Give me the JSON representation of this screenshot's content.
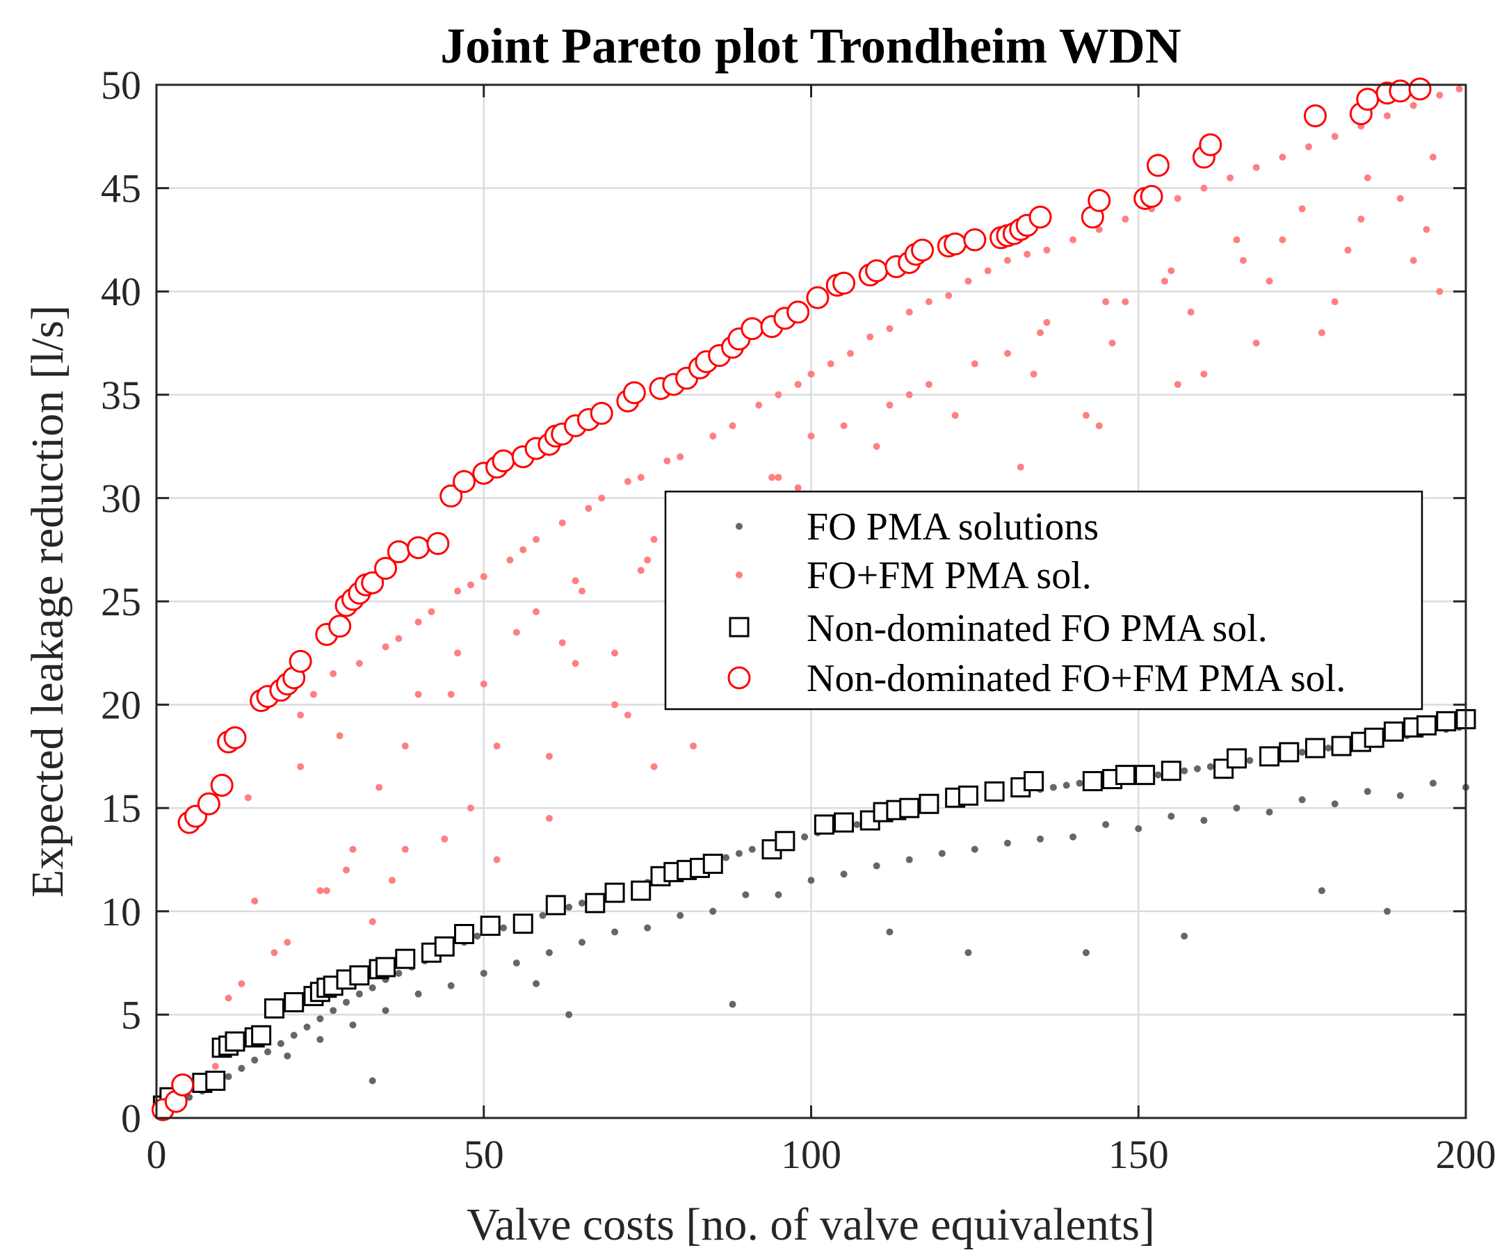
{
  "chart_data": {
    "type": "scatter",
    "title": "Joint Pareto plot Trondheim WDN",
    "xlabel": "Valve costs [no. of valve equivalents]",
    "ylabel": "Expected leakage reduction [l/s]",
    "xlim": [
      0,
      200
    ],
    "ylim": [
      0,
      50
    ],
    "xticks": [
      0,
      50,
      100,
      150,
      200
    ],
    "yticks": [
      0,
      5,
      10,
      15,
      20,
      25,
      30,
      35,
      40,
      45,
      50
    ],
    "xtick_labels": [
      "0",
      "50",
      "100",
      "150",
      "200"
    ],
    "ytick_labels": [
      "0",
      "5",
      "10",
      "15",
      "20",
      "25",
      "30",
      "35",
      "40",
      "45",
      "50"
    ],
    "grid": true,
    "legend_position": "center-right",
    "legend": [
      {
        "label": "FO PMA solutions",
        "marker": "dot",
        "color": "#666666"
      },
      {
        "label": "FO+FM PMA sol.",
        "marker": "dot",
        "color": "#ff7f7f"
      },
      {
        "label": "Non-dominated FO PMA sol.",
        "marker": "square",
        "color": "#000000"
      },
      {
        "label": "Non-dominated FO+FM PMA sol.",
        "marker": "circle",
        "color": "#ff0000"
      }
    ],
    "series": [
      {
        "name": "Non-dominated FO+FM PMA sol.",
        "marker": "circle",
        "color": "#ff0000",
        "x": [
          1,
          3,
          4,
          5,
          6,
          8,
          10,
          11,
          12,
          16,
          17,
          19,
          20,
          21,
          22,
          26,
          28,
          29,
          30,
          31,
          32,
          33,
          35,
          37,
          40,
          43,
          45,
          47,
          50,
          52,
          53,
          56,
          58,
          60,
          61,
          62,
          64,
          66,
          68,
          72,
          73,
          77,
          79,
          81,
          83,
          84,
          86,
          88,
          89,
          91,
          94,
          96,
          98,
          101,
          104,
          105,
          109,
          110,
          113,
          115,
          116,
          117,
          121,
          122,
          125,
          129,
          130,
          131,
          132,
          133,
          135,
          143,
          144,
          151,
          152,
          153,
          160,
          161,
          177,
          184,
          185,
          188,
          190,
          193
        ],
        "y": [
          0.4,
          0.8,
          1.6,
          14.3,
          14.6,
          15.2,
          16.1,
          18.2,
          18.4,
          20.2,
          20.4,
          20.7,
          21.0,
          21.3,
          22.1,
          23.4,
          23.8,
          24.8,
          25.1,
          25.4,
          25.8,
          25.9,
          26.6,
          27.4,
          27.6,
          27.8,
          30.1,
          30.8,
          31.2,
          31.5,
          31.8,
          32.0,
          32.4,
          32.6,
          33.0,
          33.1,
          33.5,
          33.8,
          34.1,
          34.7,
          35.1,
          35.3,
          35.5,
          35.8,
          36.3,
          36.6,
          36.9,
          37.3,
          37.7,
          38.2,
          38.3,
          38.7,
          39.0,
          39.7,
          40.3,
          40.4,
          40.8,
          41.0,
          41.2,
          41.4,
          41.8,
          42.0,
          42.2,
          42.3,
          42.5,
          42.6,
          42.7,
          42.8,
          43.0,
          43.2,
          43.6,
          43.6,
          44.4,
          44.5,
          44.6,
          46.1,
          46.5,
          47.1,
          48.5,
          48.6,
          49.3,
          49.6,
          49.7,
          49.8
        ]
      },
      {
        "name": "Non-dominated FO PMA sol.",
        "marker": "square",
        "color": "#000000",
        "x": [
          1,
          2,
          7,
          9,
          10,
          11,
          12,
          15,
          16,
          18,
          21,
          24,
          25,
          26,
          27,
          29,
          31,
          34,
          35,
          38,
          42,
          44,
          47,
          51,
          56,
          61,
          67,
          70,
          74,
          77,
          79,
          81,
          83,
          85,
          94,
          96,
          102,
          105,
          109,
          111,
          113,
          115,
          118,
          122,
          124,
          128,
          132,
          134,
          143,
          146,
          148,
          151,
          155,
          163,
          165,
          170,
          173,
          177,
          181,
          184,
          186,
          189,
          192,
          194,
          197,
          200
        ],
        "y": [
          0.6,
          1.0,
          1.7,
          1.8,
          3.4,
          3.5,
          3.7,
          3.9,
          4.0,
          5.3,
          5.6,
          5.9,
          6.1,
          6.3,
          6.4,
          6.7,
          6.9,
          7.2,
          7.3,
          7.7,
          8.0,
          8.3,
          8.9,
          9.3,
          9.4,
          10.3,
          10.4,
          10.9,
          11.0,
          11.7,
          11.9,
          12.0,
          12.1,
          12.3,
          13.0,
          13.4,
          14.2,
          14.3,
          14.4,
          14.8,
          14.9,
          15.0,
          15.2,
          15.5,
          15.6,
          15.8,
          16.0,
          16.3,
          16.3,
          16.4,
          16.6,
          16.6,
          16.8,
          16.9,
          17.4,
          17.5,
          17.7,
          17.9,
          18.0,
          18.2,
          18.4,
          18.7,
          18.9,
          19.0,
          19.2,
          19.3
        ]
      },
      {
        "name": "FO+FM PMA sol.",
        "marker": "dot",
        "color": "#ff7f7f",
        "x": [
          4,
          6,
          9,
          11,
          13,
          15,
          14,
          18,
          20,
          22,
          24,
          25,
          27,
          29,
          31,
          33,
          35,
          37,
          38,
          40,
          42,
          44,
          46,
          48,
          50,
          52,
          54,
          56,
          58,
          60,
          62,
          64,
          66,
          68,
          70,
          72,
          74,
          76,
          78,
          80,
          82,
          85,
          88,
          90,
          92,
          95,
          98,
          100,
          103,
          106,
          109,
          112,
          115,
          118,
          121,
          124,
          127,
          130,
          133,
          136,
          140,
          144,
          148,
          152,
          156,
          160,
          164,
          168,
          172,
          176,
          180,
          184,
          188,
          192,
          196,
          199,
          22,
          28,
          34,
          40,
          46,
          52,
          58,
          64,
          70,
          76,
          82,
          88,
          94,
          100,
          106,
          112,
          118,
          124,
          130,
          136,
          142,
          148,
          154,
          160,
          166,
          172,
          178,
          184,
          190,
          196,
          36,
          48,
          60,
          72,
          84,
          96,
          108,
          120,
          132,
          144,
          156,
          168,
          180,
          192,
          30,
          45,
          55,
          65,
          75,
          85,
          95,
          105,
          115,
          125,
          135,
          145,
          155,
          165,
          175,
          185,
          195,
          26,
          38,
          50,
          62,
          74,
          86,
          98,
          110,
          122,
          134,
          146,
          158,
          170,
          182,
          194
        ],
        "y": [
          1.5,
          2.0,
          2.5,
          5.8,
          6.5,
          10.5,
          15.5,
          8.0,
          8.5,
          19.5,
          20.5,
          11.0,
          21.5,
          12.0,
          22.0,
          9.5,
          22.8,
          23.2,
          13.0,
          24.0,
          24.5,
          13.5,
          25.5,
          25.8,
          26.2,
          12.5,
          27.0,
          27.5,
          28.0,
          14.5,
          28.8,
          22.0,
          29.5,
          30.0,
          22.5,
          30.8,
          31.0,
          17.0,
          31.8,
          32.0,
          18.0,
          33.0,
          33.5,
          24.0,
          34.5,
          35.0,
          35.5,
          36.0,
          36.5,
          37.0,
          37.8,
          38.2,
          39.0,
          39.5,
          39.8,
          40.5,
          41.0,
          41.5,
          41.8,
          42.0,
          42.5,
          43.0,
          43.5,
          44.0,
          44.5,
          45.0,
          45.5,
          46.0,
          46.5,
          47.0,
          47.5,
          48.0,
          48.5,
          49.0,
          49.5,
          49.8,
          17.0,
          18.5,
          16.0,
          20.5,
          22.5,
          18.0,
          24.5,
          26.0,
          20.0,
          28.0,
          29.0,
          24.5,
          31.0,
          33.0,
          28.0,
          34.5,
          35.5,
          30.0,
          37.0,
          38.5,
          34.0,
          39.5,
          40.5,
          36.0,
          41.5,
          42.5,
          38.0,
          43.5,
          44.5,
          40.0,
          11.5,
          15.0,
          17.5,
          19.5,
          21.5,
          25.5,
          27.5,
          29.5,
          31.5,
          33.5,
          35.5,
          37.5,
          39.5,
          41.5,
          13.0,
          20.5,
          23.5,
          25.5,
          27.0,
          29.5,
          31.0,
          33.5,
          35.0,
          36.5,
          38.0,
          39.5,
          41.0,
          42.5,
          44.0,
          45.5,
          46.5,
          11.0,
          18.0,
          21.0,
          23.0,
          26.5,
          28.5,
          30.5,
          32.5,
          34.0,
          36.0,
          37.5,
          39.0,
          40.5,
          42.0,
          43.0
        ]
      },
      {
        "name": "FO PMA solutions",
        "marker": "dot",
        "color": "#666666",
        "x": [
          1,
          3,
          5,
          7,
          9,
          11,
          13,
          15,
          17,
          19,
          21,
          23,
          25,
          27,
          29,
          31,
          33,
          35,
          37,
          39,
          41,
          43,
          45,
          47,
          49,
          51,
          53,
          55,
          57,
          59,
          61,
          63,
          65,
          67,
          69,
          71,
          73,
          75,
          77,
          79,
          81,
          83,
          85,
          87,
          89,
          91,
          93,
          95,
          97,
          99,
          101,
          103,
          105,
          107,
          109,
          111,
          113,
          115,
          117,
          119,
          121,
          123,
          125,
          127,
          129,
          131,
          133,
          135,
          137,
          139,
          141,
          143,
          145,
          147,
          149,
          151,
          153,
          155,
          157,
          159,
          161,
          163,
          165,
          167,
          169,
          171,
          173,
          175,
          177,
          179,
          181,
          183,
          185,
          187,
          189,
          191,
          193,
          195,
          197,
          199,
          20,
          30,
          40,
          50,
          60,
          70,
          80,
          90,
          100,
          110,
          120,
          130,
          140,
          150,
          160,
          170,
          180,
          190,
          200,
          25,
          35,
          45,
          55,
          65,
          75,
          85,
          95,
          105,
          115,
          125,
          135,
          145,
          155,
          165,
          175,
          185,
          195,
          33,
          58,
          63,
          88,
          112,
          124,
          142,
          157,
          178,
          188
        ],
        "y": [
          0.5,
          0.8,
          1.0,
          1.3,
          1.6,
          2.0,
          2.4,
          2.8,
          3.2,
          3.6,
          4.0,
          4.4,
          4.8,
          5.2,
          5.6,
          6.0,
          6.3,
          6.7,
          7.0,
          7.3,
          7.6,
          7.9,
          8.2,
          8.5,
          8.8,
          9.0,
          9.2,
          9.4,
          9.6,
          9.8,
          10.0,
          10.2,
          10.4,
          10.6,
          10.8,
          11.0,
          11.2,
          11.4,
          11.6,
          11.8,
          12.0,
          12.2,
          12.4,
          12.6,
          12.8,
          13.0,
          13.2,
          13.4,
          13.5,
          13.6,
          13.8,
          14.0,
          14.1,
          14.2,
          14.4,
          14.5,
          14.6,
          14.8,
          14.9,
          15.0,
          15.2,
          15.3,
          15.4,
          15.5,
          15.6,
          15.7,
          15.8,
          15.9,
          16.0,
          16.1,
          16.2,
          16.3,
          16.4,
          16.5,
          16.5,
          16.6,
          16.6,
          16.7,
          16.8,
          16.9,
          17.0,
          17.1,
          17.2,
          17.3,
          17.4,
          17.5,
          17.6,
          17.7,
          17.8,
          17.9,
          18.0,
          18.1,
          18.2,
          18.3,
          18.4,
          18.5,
          18.6,
          18.7,
          18.8,
          18.9,
          3.0,
          4.5,
          6.0,
          7.0,
          8.0,
          9.0,
          9.8,
          10.8,
          11.5,
          12.2,
          12.8,
          13.3,
          13.6,
          14.0,
          14.4,
          14.8,
          15.2,
          15.6,
          16.0,
          3.8,
          5.2,
          6.4,
          7.5,
          8.5,
          9.2,
          10.0,
          10.8,
          11.8,
          12.5,
          13.0,
          13.5,
          14.2,
          14.6,
          15.0,
          15.4,
          15.8,
          16.2,
          1.8,
          6.5,
          5.0,
          5.5,
          9.0,
          8.0,
          8.0,
          8.8,
          11.0,
          10.0
        ]
      }
    ]
  }
}
